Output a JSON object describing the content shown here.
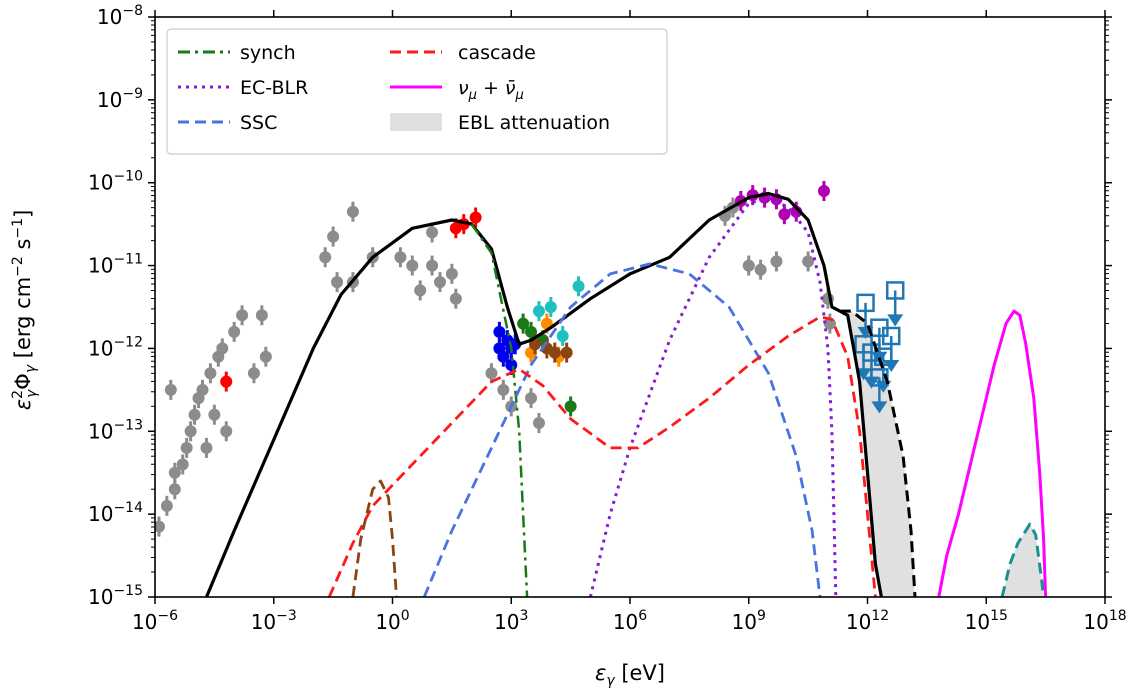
{
  "chart_data": {
    "type": "line",
    "title": "",
    "xlabel": "ε_γ [eV]",
    "ylabel": "ε_γ² Φ_γ [erg cm⁻² s⁻¹]",
    "xscale": "log",
    "yscale": "log",
    "xlim": [
      1e-06,
      1e+18
    ],
    "ylim": [
      1e-15,
      1e-08
    ],
    "grid": false,
    "legend_position": "top-left",
    "x_ticks": [
      {
        "exp": -6,
        "label": "10",
        "sup": "−6"
      },
      {
        "exp": -3,
        "label": "10",
        "sup": "−3"
      },
      {
        "exp": 0,
        "label": "10",
        "sup": "0"
      },
      {
        "exp": 3,
        "label": "10",
        "sup": "3"
      },
      {
        "exp": 6,
        "label": "10",
        "sup": "6"
      },
      {
        "exp": 9,
        "label": "10",
        "sup": "9"
      },
      {
        "exp": 12,
        "label": "10",
        "sup": "12"
      },
      {
        "exp": 15,
        "label": "10",
        "sup": "15"
      },
      {
        "exp": 18,
        "label": "10",
        "sup": "18"
      }
    ],
    "y_ticks": [
      {
        "exp": -15,
        "label": "10",
        "sup": "−15"
      },
      {
        "exp": -14,
        "label": "10",
        "sup": "−14"
      },
      {
        "exp": -13,
        "label": "10",
        "sup": "−13"
      },
      {
        "exp": -12,
        "label": "10",
        "sup": "−12"
      },
      {
        "exp": -11,
        "label": "10",
        "sup": "−11"
      },
      {
        "exp": -10,
        "label": "10",
        "sup": "−10"
      },
      {
        "exp": -9,
        "label": "10",
        "sup": "−9"
      },
      {
        "exp": -8,
        "label": "10",
        "sup": "−8"
      }
    ],
    "legend": [
      {
        "label": "synch",
        "color": "#1a7a1a",
        "style": "dashdot"
      },
      {
        "label": "EC-BLR",
        "color": "#8a1ad6",
        "style": "dotted"
      },
      {
        "label": "SSC",
        "color": "#4a72e0",
        "style": "dashed"
      },
      {
        "label": "cascade",
        "color": "#ff1a1a",
        "style": "dashed"
      },
      {
        "label": "ν_μ + ν̄_μ",
        "color": "#ff00ff",
        "style": "solid"
      },
      {
        "label": "EBL attenuation",
        "color": "#e0e0e0",
        "style": "fill"
      }
    ],
    "series_note": "points are [log10(E/eV), log10(flux)]",
    "series": [
      {
        "name": "total",
        "color": "#000000",
        "style": "solid",
        "width": 3.2,
        "points": [
          [
            -4.7,
            -15
          ],
          [
            -4.0,
            -14.2
          ],
          [
            -3.0,
            -13.1
          ],
          [
            -2.0,
            -12.0
          ],
          [
            -1.3,
            -11.35
          ],
          [
            -0.5,
            -10.9
          ],
          [
            0.5,
            -10.55
          ],
          [
            1.5,
            -10.45
          ],
          [
            2.0,
            -10.5
          ],
          [
            2.5,
            -10.8
          ],
          [
            2.9,
            -11.5
          ],
          [
            3.2,
            -11.95
          ],
          [
            3.5,
            -11.9
          ],
          [
            4.0,
            -11.75
          ],
          [
            5.0,
            -11.4
          ],
          [
            6.0,
            -11.1
          ],
          [
            7.0,
            -10.9
          ],
          [
            8.0,
            -10.45
          ],
          [
            9.0,
            -10.18
          ],
          [
            9.5,
            -10.13
          ],
          [
            10.0,
            -10.2
          ],
          [
            10.5,
            -10.45
          ],
          [
            10.9,
            -11.0
          ],
          [
            11.1,
            -11.5
          ],
          [
            11.3,
            -11.55
          ],
          [
            11.5,
            -11.6
          ],
          [
            11.8,
            -12.4
          ],
          [
            12.0,
            -13.5
          ],
          [
            12.2,
            -14.6
          ],
          [
            12.35,
            -15
          ]
        ]
      },
      {
        "name": "total-after-EBL-upper",
        "color": "#000000",
        "style": "dashed",
        "width": 3,
        "points": [
          [
            11.3,
            -11.55
          ],
          [
            11.6,
            -11.55
          ],
          [
            12.0,
            -11.7
          ],
          [
            12.5,
            -12.4
          ],
          [
            12.9,
            -13.3
          ],
          [
            13.1,
            -14.2
          ],
          [
            13.2,
            -15
          ]
        ]
      },
      {
        "name": "synch",
        "color": "#1a7a1a",
        "style": "dashdot",
        "width": 2.5,
        "points": [
          [
            2.0,
            -10.5
          ],
          [
            2.5,
            -10.85
          ],
          [
            3.0,
            -12.0
          ],
          [
            3.2,
            -13.0
          ],
          [
            3.3,
            -14.0
          ],
          [
            3.4,
            -15
          ]
        ]
      },
      {
        "name": "EC-BLR",
        "color": "#8a1ad6",
        "style": "dotted",
        "width": 3,
        "points": [
          [
            5.0,
            -15
          ],
          [
            5.5,
            -14.0
          ],
          [
            6.0,
            -13.2
          ],
          [
            7.0,
            -11.9
          ],
          [
            8.0,
            -10.9
          ],
          [
            9.0,
            -10.25
          ],
          [
            9.5,
            -10.18
          ],
          [
            10.0,
            -10.3
          ],
          [
            10.5,
            -10.6
          ],
          [
            10.8,
            -11.2
          ],
          [
            11.0,
            -12.0
          ],
          [
            11.1,
            -13.0
          ],
          [
            11.15,
            -14.0
          ],
          [
            11.2,
            -15
          ]
        ]
      },
      {
        "name": "SSC",
        "color": "#4a72e0",
        "style": "dashed",
        "width": 2.8,
        "points": [
          [
            0.8,
            -15
          ],
          [
            1.5,
            -14.2
          ],
          [
            2.5,
            -13.2
          ],
          [
            3.5,
            -12.2
          ],
          [
            4.5,
            -11.5
          ],
          [
            5.5,
            -11.1
          ],
          [
            6.5,
            -10.98
          ],
          [
            7.5,
            -11.1
          ],
          [
            8.5,
            -11.5
          ],
          [
            9.5,
            -12.3
          ],
          [
            10.2,
            -13.3
          ],
          [
            10.6,
            -14.2
          ],
          [
            10.8,
            -15
          ]
        ]
      },
      {
        "name": "cascade",
        "color": "#ff1a1a",
        "style": "dashed",
        "width": 2.8,
        "points": [
          [
            -1.6,
            -15
          ],
          [
            -1.0,
            -14.35
          ],
          [
            -0.5,
            -13.9
          ],
          [
            0.5,
            -13.4
          ],
          [
            1.5,
            -12.9
          ],
          [
            2.5,
            -12.4
          ],
          [
            3.2,
            -12.25
          ],
          [
            3.8,
            -12.45
          ],
          [
            4.5,
            -12.85
          ],
          [
            5.5,
            -13.2
          ],
          [
            6.2,
            -13.2
          ],
          [
            7.0,
            -12.95
          ],
          [
            8.0,
            -12.6
          ],
          [
            9.0,
            -12.2
          ],
          [
            10.0,
            -11.85
          ],
          [
            10.8,
            -11.62
          ],
          [
            11.1,
            -11.65
          ],
          [
            11.5,
            -12.1
          ],
          [
            11.8,
            -13.0
          ],
          [
            12.0,
            -14.0
          ],
          [
            12.2,
            -15
          ]
        ]
      },
      {
        "name": "brown-component",
        "color": "#8b4513",
        "style": "dashed",
        "width": 2.8,
        "points": [
          [
            -1.0,
            -15
          ],
          [
            -0.8,
            -14.3
          ],
          [
            -0.5,
            -13.7
          ],
          [
            -0.3,
            -13.6
          ],
          [
            -0.1,
            -13.8
          ],
          [
            0.0,
            -14.3
          ],
          [
            0.1,
            -15
          ]
        ]
      },
      {
        "name": "ν_μ + ν̄_μ",
        "color": "#ff00ff",
        "style": "solid",
        "width": 3,
        "points": [
          [
            13.8,
            -15
          ],
          [
            14.0,
            -14.5
          ],
          [
            14.3,
            -14.0
          ],
          [
            14.6,
            -13.4
          ],
          [
            14.9,
            -12.8
          ],
          [
            15.2,
            -12.2
          ],
          [
            15.5,
            -11.7
          ],
          [
            15.7,
            -11.55
          ],
          [
            15.85,
            -11.6
          ],
          [
            16.0,
            -11.95
          ],
          [
            16.2,
            -12.6
          ],
          [
            16.35,
            -13.5
          ],
          [
            16.45,
            -14.3
          ],
          [
            16.5,
            -15
          ]
        ]
      },
      {
        "name": "neutrino-EBL-gamma",
        "color": "#1a9090",
        "style": "dashed",
        "width": 3,
        "points": [
          [
            15.4,
            -15
          ],
          [
            15.6,
            -14.6
          ],
          [
            15.8,
            -14.35
          ],
          [
            16.0,
            -14.2
          ],
          [
            16.1,
            -14.12
          ],
          [
            16.25,
            -14.25
          ],
          [
            16.4,
            -14.8
          ],
          [
            16.45,
            -15
          ]
        ]
      }
    ],
    "ebl_fill": [
      {
        "upper": [
          [
            11.3,
            -11.55
          ],
          [
            11.6,
            -11.55
          ],
          [
            12.0,
            -11.7
          ],
          [
            12.5,
            -12.4
          ],
          [
            12.9,
            -13.3
          ],
          [
            13.1,
            -14.2
          ],
          [
            13.2,
            -15
          ]
        ],
        "lower": [
          [
            11.3,
            -11.55
          ],
          [
            11.5,
            -11.6
          ],
          [
            11.8,
            -12.4
          ],
          [
            12.0,
            -13.5
          ],
          [
            12.2,
            -14.6
          ],
          [
            12.35,
            -15
          ]
        ]
      },
      {
        "upper": [
          [
            15.4,
            -15
          ],
          [
            15.6,
            -14.6
          ],
          [
            15.8,
            -14.35
          ],
          [
            16.0,
            -14.2
          ],
          [
            16.1,
            -14.12
          ],
          [
            16.25,
            -14.25
          ],
          [
            16.4,
            -14.8
          ],
          [
            16.45,
            -15
          ]
        ],
        "lower": [
          [
            15.4,
            -15
          ],
          [
            16.45,
            -15
          ]
        ]
      }
    ],
    "scatter": [
      {
        "name": "archival-grey",
        "color": "#8c8c8c",
        "points": [
          [
            -5.9,
            -14.15
          ],
          [
            -5.7,
            -13.9
          ],
          [
            -5.5,
            -13.7
          ],
          [
            -5.3,
            -13.4
          ],
          [
            -5.2,
            -13.2
          ],
          [
            -5.1,
            -13.0
          ],
          [
            -5.0,
            -12.8
          ],
          [
            -4.9,
            -12.6
          ],
          [
            -4.8,
            -12.5
          ],
          [
            -4.6,
            -12.3
          ],
          [
            -4.4,
            -12.1
          ],
          [
            -4.3,
            -12.0
          ],
          [
            -4.0,
            -11.8
          ],
          [
            -3.8,
            -11.6
          ],
          [
            -5.6,
            -12.5
          ],
          [
            -4.5,
            -12.8
          ],
          [
            -4.2,
            -13.0
          ],
          [
            -4.7,
            -13.2
          ],
          [
            -5.5,
            -13.5
          ],
          [
            -3.5,
            -12.3
          ],
          [
            -3.2,
            -12.1
          ],
          [
            -3.3,
            -11.6
          ],
          [
            -1.7,
            -10.9
          ],
          [
            -1.5,
            -10.65
          ],
          [
            -1.0,
            -10.35
          ],
          [
            -1.4,
            -11.2
          ],
          [
            -1.0,
            -11.2
          ],
          [
            -0.5,
            -10.9
          ],
          [
            0.2,
            -10.9
          ],
          [
            0.5,
            -11.0
          ],
          [
            1.0,
            -11.0
          ],
          [
            1.2,
            -11.2
          ],
          [
            1.5,
            -11.1
          ],
          [
            1.0,
            -10.6
          ],
          [
            0.7,
            -11.3
          ],
          [
            1.6,
            -11.4
          ],
          [
            2.5,
            -12.3
          ],
          [
            2.8,
            -12.5
          ],
          [
            3.0,
            -12.7
          ],
          [
            3.5,
            -12.6
          ],
          [
            3.7,
            -12.9
          ],
          [
            8.4,
            -10.4
          ],
          [
            8.6,
            -10.3
          ],
          [
            9.0,
            -11.0
          ],
          [
            9.3,
            -11.05
          ],
          [
            9.7,
            -10.95
          ],
          [
            10.5,
            -10.95
          ],
          [
            11.0,
            -11.4
          ],
          [
            11.05,
            -11.7
          ]
        ]
      },
      {
        "name": "optical-red",
        "color": "#ff0000",
        "points": [
          [
            -4.2,
            -12.4
          ],
          [
            1.6,
            -10.55
          ],
          [
            1.8,
            -10.5
          ],
          [
            2.1,
            -10.42
          ]
        ]
      },
      {
        "name": "xray-blue",
        "color": "#0000ee",
        "points": [
          [
            2.7,
            -11.8
          ],
          [
            2.9,
            -11.9
          ],
          [
            3.0,
            -12.0
          ],
          [
            2.8,
            -12.1
          ],
          [
            3.1,
            -11.95
          ],
          [
            2.7,
            -12.0
          ],
          [
            3.0,
            -12.2
          ]
        ]
      },
      {
        "name": "xray-green",
        "color": "#1a7a1a",
        "points": [
          [
            3.3,
            -11.7
          ],
          [
            3.5,
            -11.8
          ],
          [
            4.5,
            -12.7
          ],
          [
            3.8,
            -11.9
          ]
        ]
      },
      {
        "name": "xray-cyan",
        "color": "#20c0c0",
        "points": [
          [
            3.7,
            -11.55
          ],
          [
            4.0,
            -11.5
          ],
          [
            4.3,
            -11.85
          ],
          [
            4.7,
            -11.25
          ]
        ]
      },
      {
        "name": "xray-orange",
        "color": "#ff8c00",
        "points": [
          [
            3.5,
            -12.05
          ],
          [
            3.9,
            -11.7
          ],
          [
            4.2,
            -12.1
          ]
        ]
      },
      {
        "name": "xray-brown",
        "color": "#8b4513",
        "points": [
          [
            3.6,
            -11.95
          ],
          [
            3.9,
            -12.0
          ],
          [
            4.1,
            -12.05
          ],
          [
            4.4,
            -12.05
          ]
        ]
      },
      {
        "name": "fermi-magenta",
        "color": "#b000b0",
        "points": [
          [
            8.8,
            -10.22
          ],
          [
            9.1,
            -10.15
          ],
          [
            9.4,
            -10.18
          ],
          [
            9.7,
            -10.2
          ],
          [
            9.9,
            -10.38
          ],
          [
            10.2,
            -10.35
          ],
          [
            10.9,
            -10.1
          ]
        ]
      }
    ],
    "upper_limits": {
      "name": "upper-limits",
      "color": "#1f77b4",
      "points": [
        [
          11.95,
          -11.45
        ],
        [
          12.7,
          -11.3
        ],
        [
          12.3,
          -11.75
        ],
        [
          12.6,
          -11.85
        ],
        [
          11.9,
          -11.95
        ],
        [
          12.1,
          -12.05
        ],
        [
          12.4,
          -12.1
        ],
        [
          12.3,
          -12.35
        ]
      ]
    }
  }
}
